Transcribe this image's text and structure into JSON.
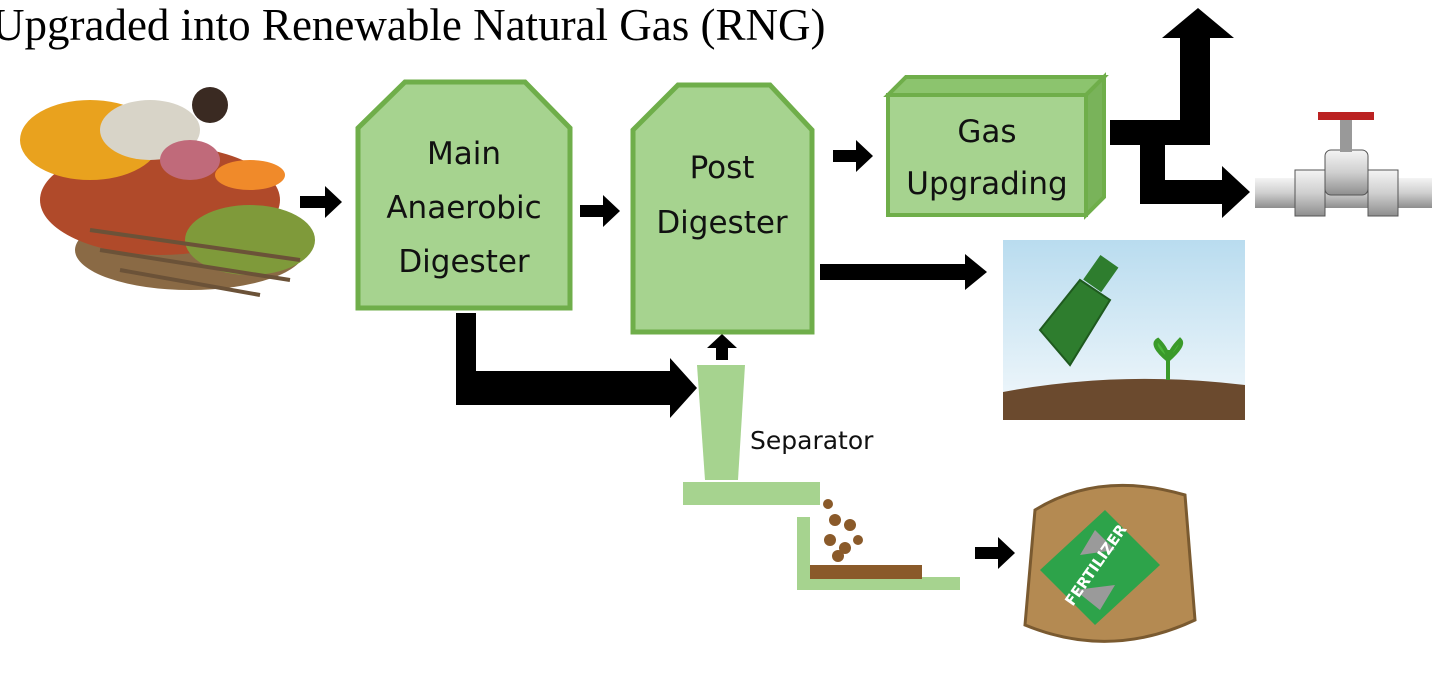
{
  "header": {
    "title": "Upgraded into Renewable Natural Gas (RNG)"
  },
  "nodes": [
    {
      "lines": [
        "Main",
        "Anaerobic",
        "Digester"
      ]
    },
    {
      "lines": [
        "Post",
        "Digester"
      ]
    },
    {
      "lines": [
        "Gas",
        "Upgrading"
      ]
    },
    {
      "lines": [
        "Separator"
      ]
    },
    {
      "lines": [
        "FERTILIZER"
      ]
    }
  ]
}
